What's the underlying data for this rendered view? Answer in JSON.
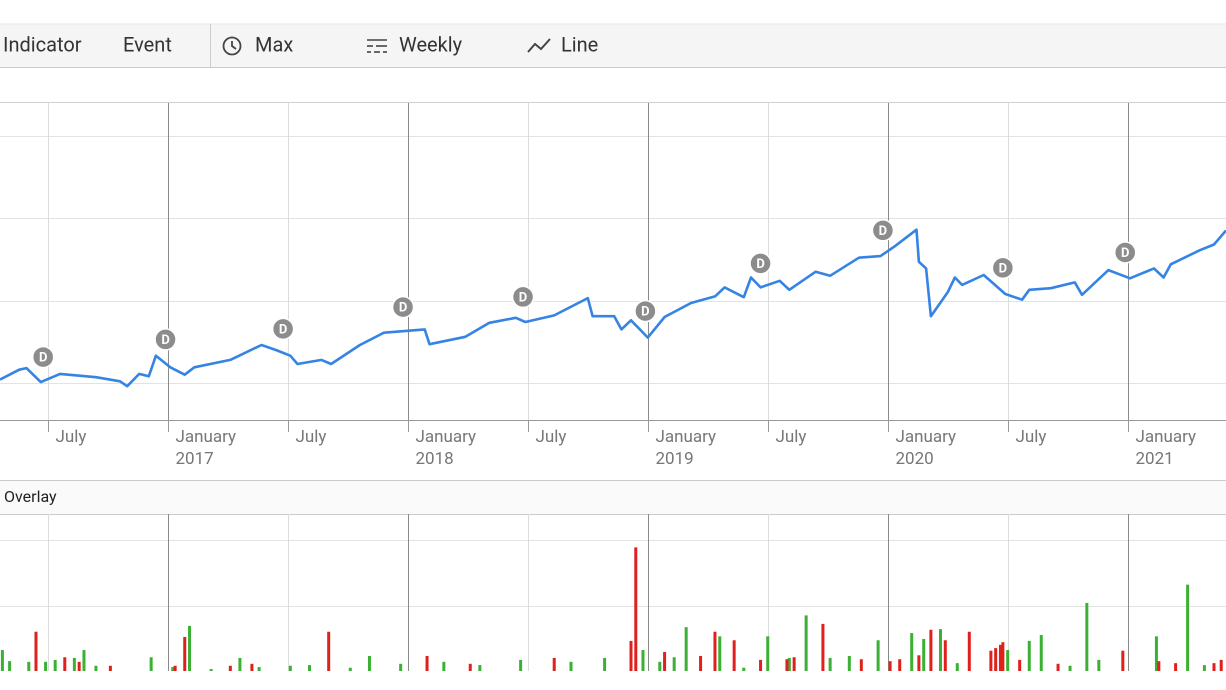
{
  "toolbar": {
    "items": [
      "Indicator",
      "Event",
      "Max",
      "Weekly",
      "Line"
    ]
  },
  "chart_data": [
    {
      "type": "line",
      "color": "#3584e4",
      "xlim": [
        2016.3,
        2021.41
      ],
      "ylim": [
        0.55,
        4.41
      ],
      "ygrid": [
        1,
        2,
        3,
        4
      ],
      "xticks": [
        {
          "value": 2016.5,
          "label": "July"
        },
        {
          "value": 2017,
          "label": "January 2017"
        },
        {
          "value": 2017.5,
          "label": "July"
        },
        {
          "value": 2018,
          "label": "January 2018"
        },
        {
          "value": 2018.5,
          "label": "July"
        },
        {
          "value": 2019,
          "label": "January 2019"
        },
        {
          "value": 2019.5,
          "label": "July"
        },
        {
          "value": 2020,
          "label": "January 2020"
        },
        {
          "value": 2020.5,
          "label": "July"
        },
        {
          "value": 2021,
          "label": "January 2021"
        }
      ],
      "x": [
        2016.3,
        2016.38,
        2016.41,
        2016.47,
        2016.55,
        2016.7,
        2016.8,
        2016.83,
        2016.88,
        2016.92,
        2016.95,
        2017.01,
        2017.07,
        2017.11,
        2017.26,
        2017.39,
        2017.45,
        2017.51,
        2017.54,
        2017.64,
        2017.68,
        2017.8,
        2017.9,
        2018.07,
        2018.09,
        2018.24,
        2018.34,
        2018.45,
        2018.49,
        2018.61,
        2018.75,
        2018.77,
        2018.86,
        2018.89,
        2018.93,
        2019.0,
        2019.07,
        2019.18,
        2019.28,
        2019.32,
        2019.4,
        2019.43,
        2019.47,
        2019.55,
        2019.59,
        2019.7,
        2019.76,
        2019.88,
        2019.97,
        2020.03,
        2020.12,
        2020.13,
        2020.16,
        2020.18,
        2020.25,
        2020.28,
        2020.31,
        2020.4,
        2020.49,
        2020.56,
        2020.59,
        2020.68,
        2020.78,
        2020.81,
        2020.92,
        2021.01,
        2021.11,
        2021.15,
        2021.18,
        2021.3,
        2021.36,
        2021.41
      ],
      "values": [
        1.04,
        1.16,
        1.18,
        1.01,
        1.11,
        1.07,
        1.02,
        0.96,
        1.11,
        1.08,
        1.33,
        1.19,
        1.1,
        1.19,
        1.28,
        1.46,
        1.4,
        1.33,
        1.23,
        1.28,
        1.23,
        1.46,
        1.61,
        1.65,
        1.47,
        1.56,
        1.73,
        1.79,
        1.74,
        1.82,
        2.03,
        1.81,
        1.81,
        1.65,
        1.76,
        1.55,
        1.8,
        1.97,
        2.05,
        2.16,
        2.04,
        2.28,
        2.16,
        2.24,
        2.13,
        2.35,
        2.3,
        2.52,
        2.54,
        2.66,
        2.86,
        2.47,
        2.39,
        1.81,
        2.1,
        2.28,
        2.19,
        2.31,
        2.08,
        2.01,
        2.13,
        2.15,
        2.22,
        2.07,
        2.37,
        2.27,
        2.39,
        2.28,
        2.44,
        2.61,
        2.68,
        2.85
      ],
      "events": [
        {
          "x": 2016.48,
          "label": "D"
        },
        {
          "x": 2016.99,
          "label": "D"
        },
        {
          "x": 2017.48,
          "label": "D"
        },
        {
          "x": 2017.98,
          "label": "D"
        },
        {
          "x": 2018.48,
          "label": "D"
        },
        {
          "x": 2018.99,
          "label": "D"
        },
        {
          "x": 2019.47,
          "label": "D"
        },
        {
          "x": 2019.98,
          "label": "D"
        },
        {
          "x": 2020.48,
          "label": "D"
        },
        {
          "x": 2020.99,
          "label": "D"
        }
      ]
    },
    {
      "type": "bar",
      "title": "Overlay",
      "xlim": [
        2016.3,
        2021.41
      ],
      "ylim": [
        0,
        2.4
      ],
      "ygrid": [
        1,
        2
      ],
      "series": [
        {
          "color": "#3cb034",
          "x": [
            2016.31,
            2016.34,
            2016.42,
            2016.49,
            2016.53,
            2016.61,
            2016.65,
            2016.7,
            2016.93,
            2017.02,
            2017.09,
            2017.18,
            2017.3,
            2017.38,
            2017.51,
            2017.59,
            2017.76,
            2017.84,
            2017.97,
            2018.15,
            2018.3,
            2018.47,
            2018.68,
            2018.82,
            2018.98,
            2019.05,
            2019.11,
            2019.16,
            2019.3,
            2019.4,
            2019.5,
            2019.59,
            2019.66,
            2019.76,
            2019.84,
            2019.96,
            2020.1,
            2020.15,
            2020.22,
            2020.29,
            2020.5,
            2020.59,
            2020.64,
            2020.76,
            2020.83,
            2020.88,
            2021.12,
            2021.25,
            2021.32
          ],
          "values": [
            0.32,
            0.15,
            0.14,
            0.14,
            0.17,
            0.2,
            0.32,
            0.08,
            0.21,
            0.06,
            0.69,
            0.03,
            0.2,
            0.06,
            0.08,
            0.09,
            0.05,
            0.23,
            0.11,
            0.14,
            0.09,
            0.17,
            0.14,
            0.2,
            0.32,
            0.14,
            0.21,
            0.67,
            0.53,
            0.05,
            0.53,
            0.2,
            0.85,
            0.2,
            0.23,
            0.47,
            0.58,
            0.49,
            0.64,
            0.12,
            0.32,
            0.46,
            0.55,
            0.08,
            1.04,
            0.17,
            0.53,
            1.32,
            0.09
          ]
        },
        {
          "color": "#e0201c",
          "x": [
            2016.45,
            2016.57,
            2016.63,
            2016.76,
            2017.03,
            2017.07,
            2017.26,
            2017.35,
            2017.67,
            2018.08,
            2018.26,
            2018.61,
            2018.93,
            2018.95,
            2019.07,
            2019.22,
            2019.28,
            2019.36,
            2019.47,
            2019.58,
            2019.61,
            2019.73,
            2019.89,
            2020.01,
            2020.05,
            2020.13,
            2020.18,
            2020.24,
            2020.34,
            2020.43,
            2020.45,
            2020.47,
            2020.48,
            2020.55,
            2020.71,
            2020.98,
            2021.13,
            2021.2,
            2021.36,
            2021.39
          ],
          "values": [
            0.6,
            0.21,
            0.14,
            0.08,
            0.08,
            0.52,
            0.08,
            0.11,
            0.6,
            0.23,
            0.11,
            0.2,
            0.46,
            1.89,
            0.29,
            0.23,
            0.6,
            0.47,
            0.17,
            0.18,
            0.21,
            0.72,
            0.18,
            0.15,
            0.18,
            0.24,
            0.63,
            0.47,
            0.6,
            0.31,
            0.35,
            0.4,
            0.44,
            0.17,
            0.11,
            0.31,
            0.15,
            0.12,
            0.12,
            0.17
          ]
        }
      ]
    }
  ]
}
